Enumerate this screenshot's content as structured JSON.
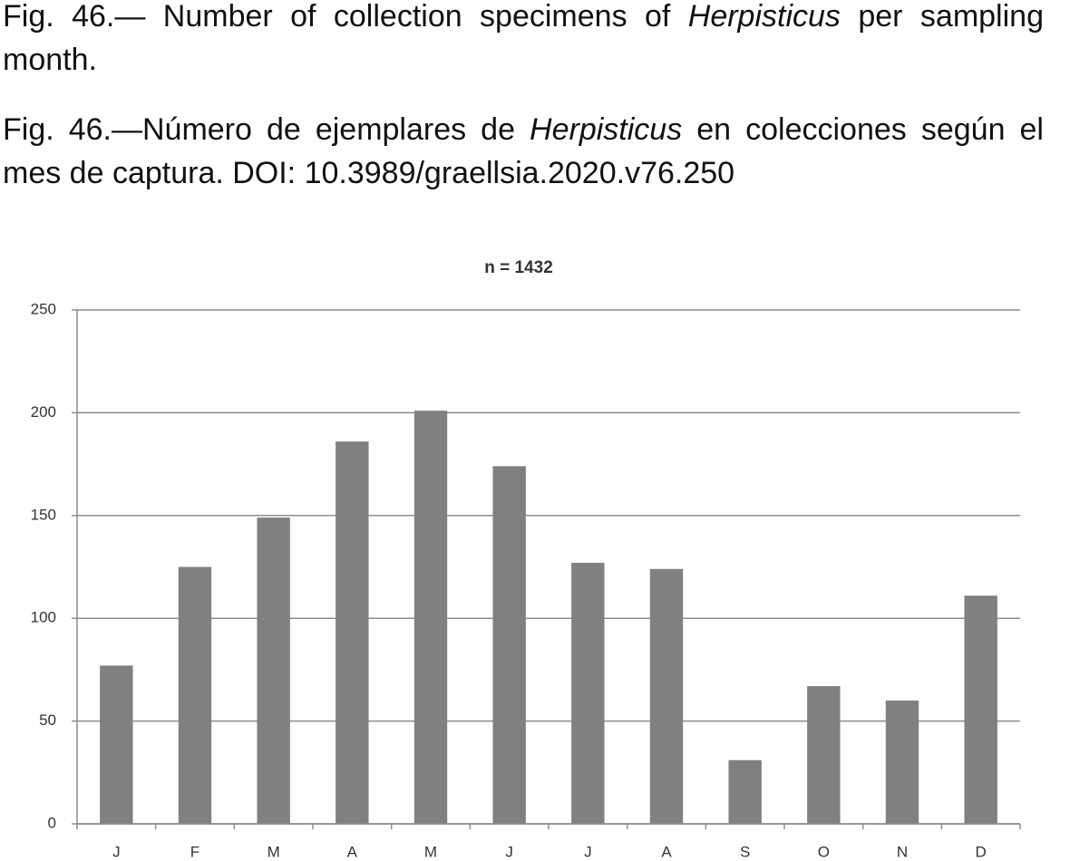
{
  "caption_en": [
    "Fig. 46.— Number of collection specimens of ",
    "Herpisticus",
    " per sampling month."
  ],
  "caption_es": [
    "Fig. 46.—Número de ejemplares de ",
    "Herpisticus",
    " en colecciones según el mes de captura. DOI: 10.3989/graellsia.2020.v76.250"
  ],
  "chart_data": {
    "type": "bar",
    "title": "n = 1432",
    "categories": [
      "J",
      "F",
      "M",
      "A",
      "M",
      "J",
      "J",
      "A",
      "S",
      "O",
      "N",
      "D"
    ],
    "values": [
      77,
      125,
      149,
      186,
      201,
      174,
      127,
      124,
      31,
      67,
      60,
      111
    ],
    "color": "#808080",
    "ylim": [
      0,
      250
    ],
    "yticks": [
      0,
      50,
      100,
      150,
      200,
      250
    ],
    "grid": true
  }
}
